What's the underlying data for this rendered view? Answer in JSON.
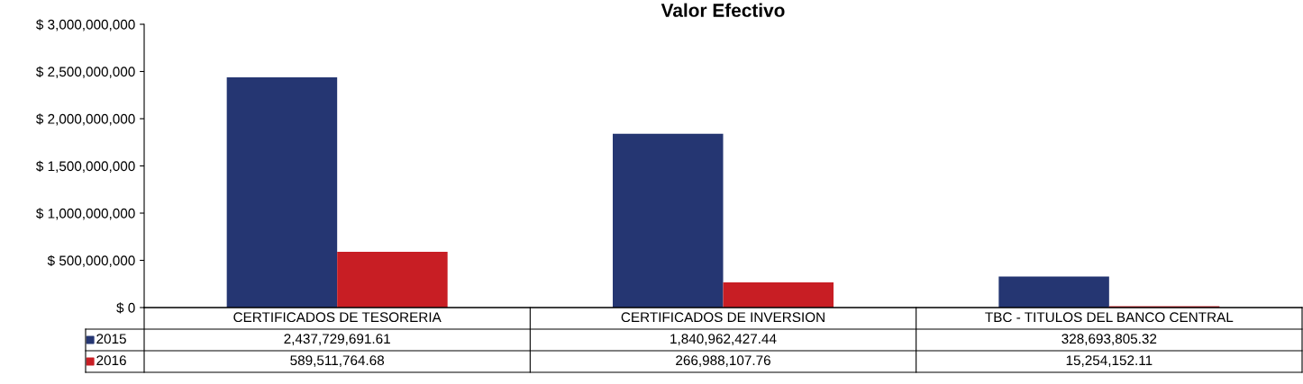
{
  "chart_data": {
    "type": "bar",
    "title": "Valor Efectivo",
    "categories": [
      "CERTIFICADOS DE TESORERIA",
      "CERTIFICADOS DE INVERSION",
      "TBC - TITULOS DEL BANCO CENTRAL"
    ],
    "series": [
      {
        "name": "2015",
        "color": "#253672",
        "values": [
          2437729691.61,
          1840962427.44,
          328693805.32
        ],
        "value_labels": [
          "2,437,729,691.61",
          "1,840,962,427.44",
          "328,693,805.32"
        ]
      },
      {
        "name": "2016",
        "color": "#c81e24",
        "values": [
          589511764.68,
          266988107.76,
          15254152.11
        ],
        "value_labels": [
          "589,511,764.68",
          "266,988,107.76",
          "15,254,152.11"
        ]
      }
    ],
    "ylim": [
      0,
      3000000000
    ],
    "yticks": [
      {
        "value": 0,
        "label": "$ 0"
      },
      {
        "value": 500000000,
        "label": "$ 500,000,000"
      },
      {
        "value": 1000000000,
        "label": "$ 1,000,000,000"
      },
      {
        "value": 1500000000,
        "label": "$ 1,500,000,000"
      },
      {
        "value": 2000000000,
        "label": "$ 2,000,000,000"
      },
      {
        "value": 2500000000,
        "label": "$ 2,500,000,000"
      },
      {
        "value": 3000000000,
        "label": "$ 3,000,000,000"
      }
    ],
    "legend": "bottom left",
    "grid": false
  }
}
